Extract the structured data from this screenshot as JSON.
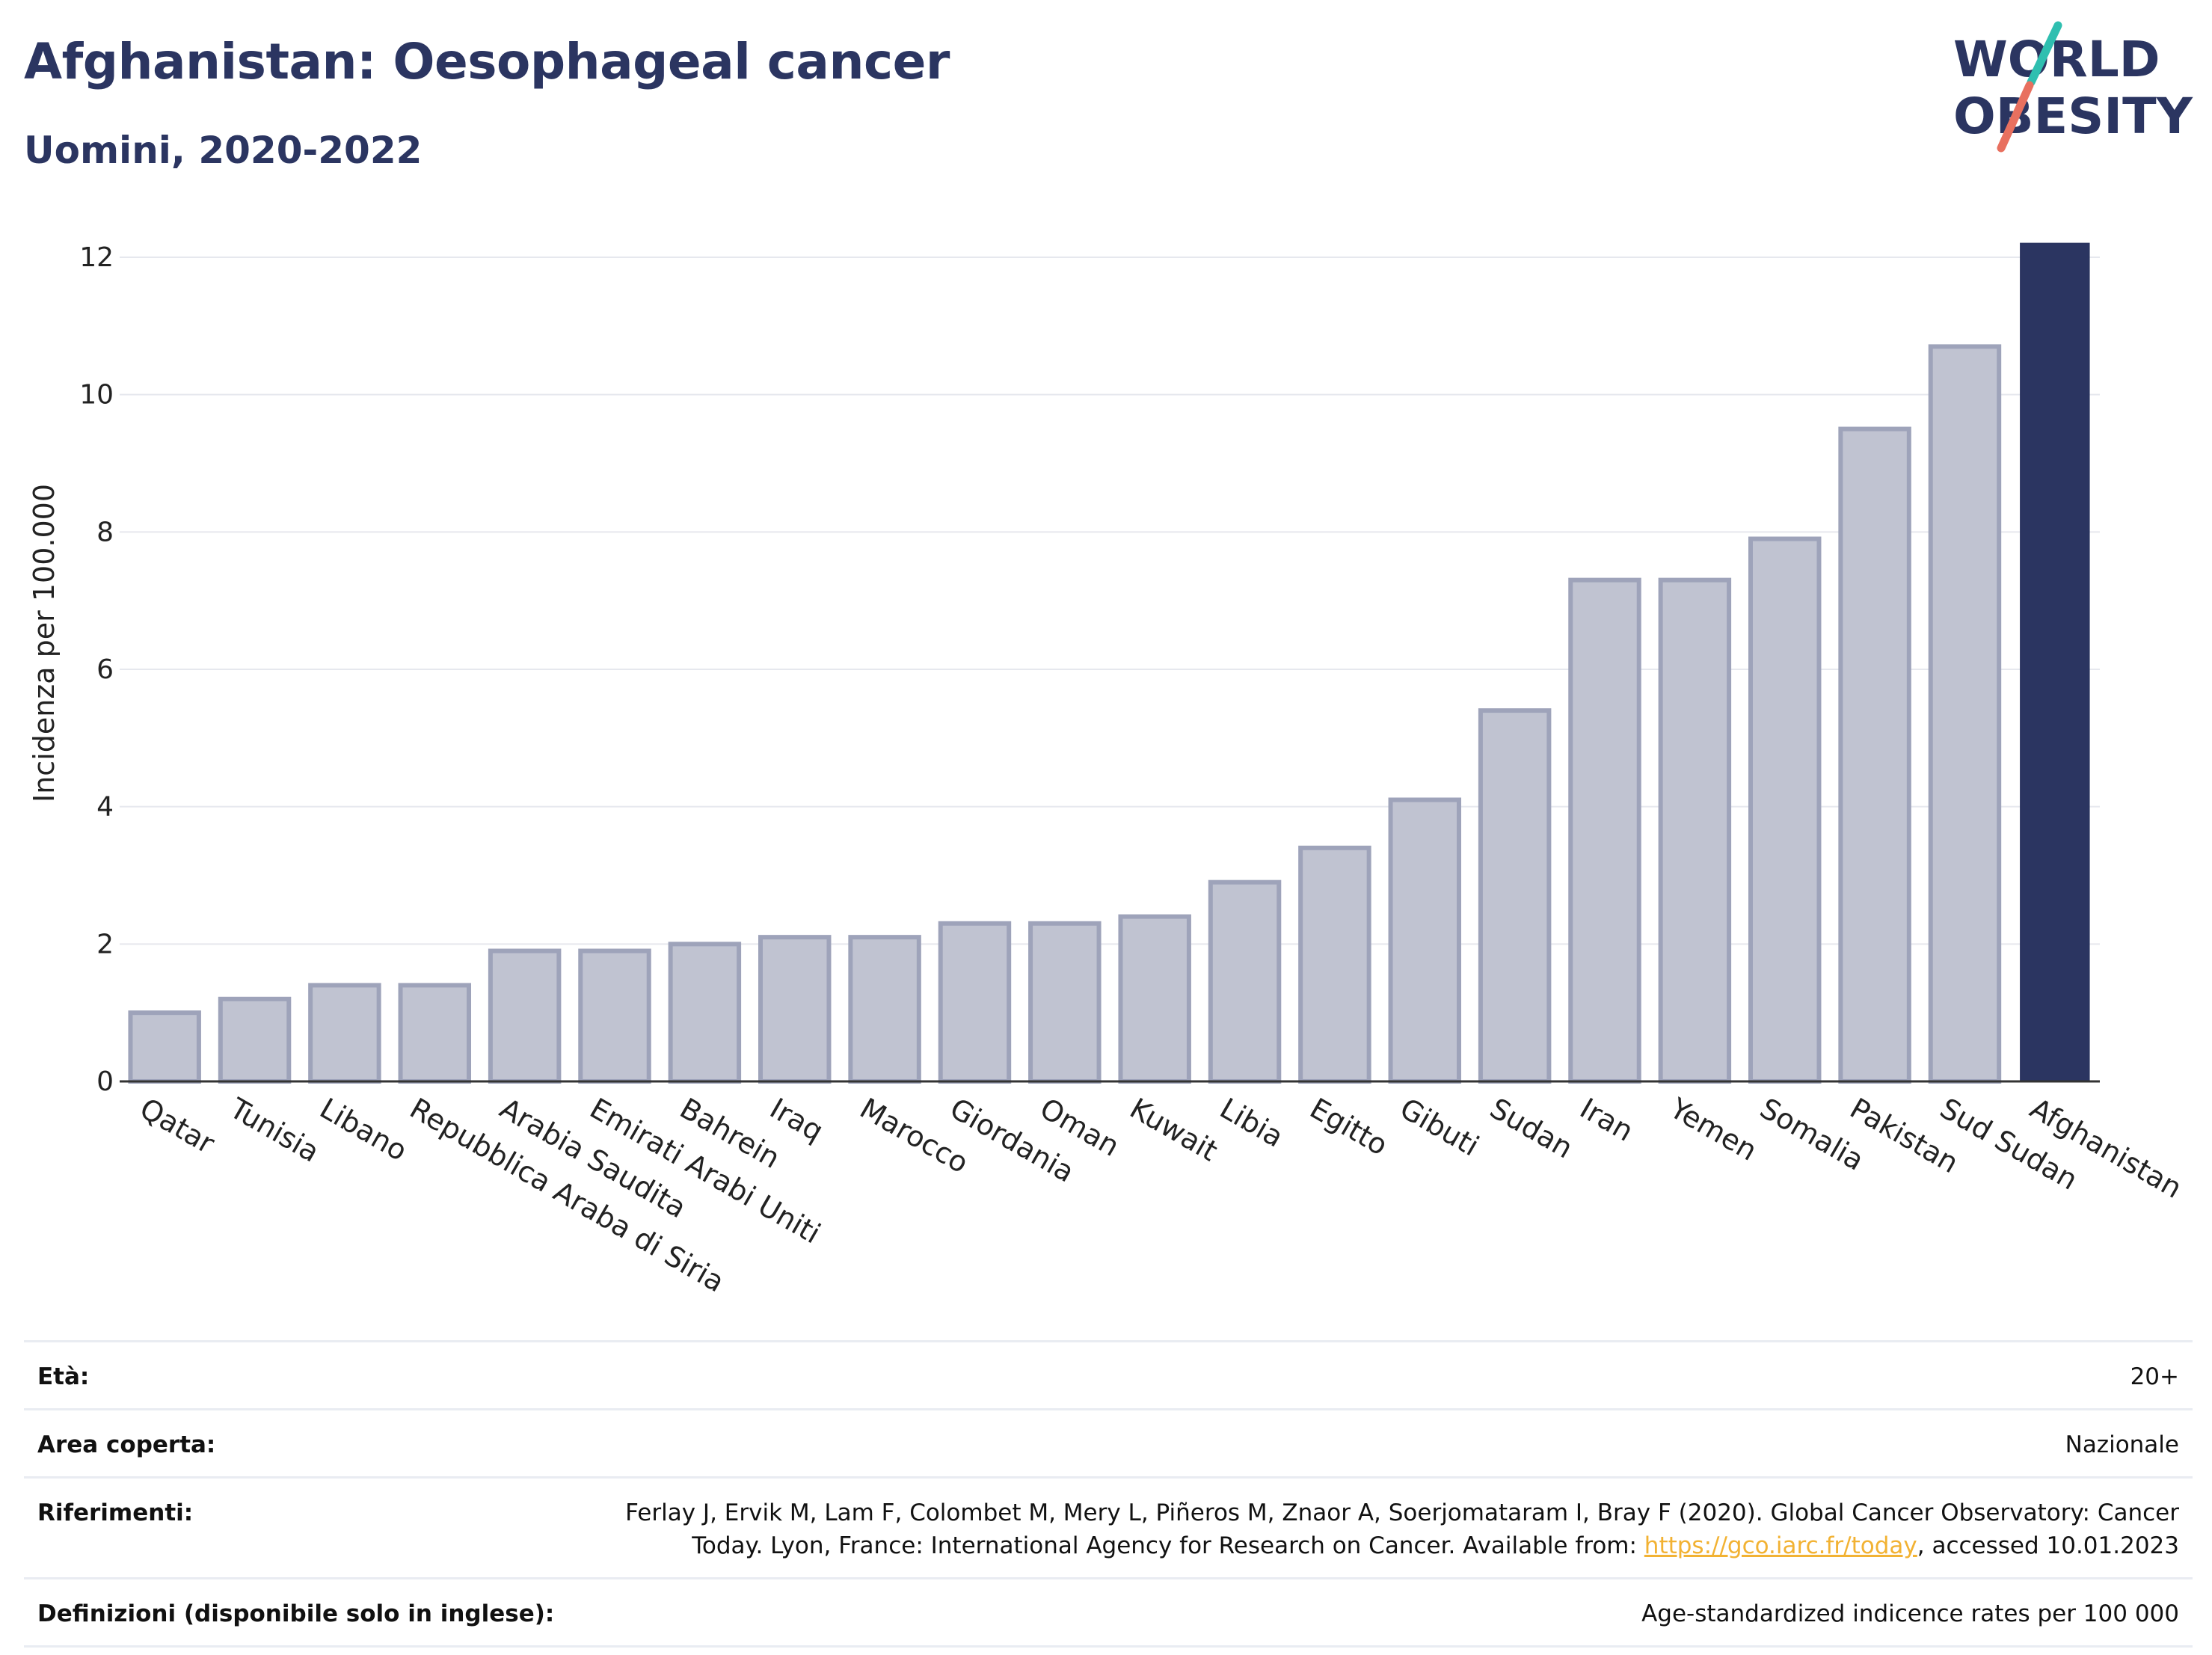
{
  "header": {
    "title": "Afghanistan: Oesophageal cancer",
    "subtitle": "Uomini, 2020-2022"
  },
  "logo": {
    "line1": "WORLD",
    "line2": "OBESITY",
    "slash_colors": [
      "#2fbfb0",
      "#e8705f"
    ],
    "text_color": "#2b3561"
  },
  "chart_data": {
    "type": "bar",
    "ylabel": "Incidenza per 100.000",
    "ylim": [
      0,
      12.3
    ],
    "yticks": [
      0,
      2,
      4,
      6,
      8,
      10,
      12
    ],
    "grid": true,
    "categories": [
      "Qatar",
      "Tunisia",
      "Libano",
      "Repubblica Araba di Siria",
      "Arabia Saudita",
      "Emirati Arabi Uniti",
      "Bahrein",
      "Iraq",
      "Marocco",
      "Giordania",
      "Oman",
      "Kuwait",
      "Libia",
      "Egitto",
      "Gibuti",
      "Sudan",
      "Iran",
      "Yemen",
      "Somalia",
      "Pakistan",
      "Sud Sudan",
      "Afghanistan"
    ],
    "values": [
      1.0,
      1.2,
      1.4,
      1.4,
      1.9,
      1.9,
      2.0,
      2.1,
      2.1,
      2.3,
      2.3,
      2.4,
      2.9,
      3.4,
      4.1,
      5.4,
      7.3,
      7.3,
      7.9,
      9.5,
      10.7,
      12.2
    ],
    "highlight": "Afghanistan",
    "colors": {
      "bar": "#c0c3d1",
      "bar_edge": "#9ea3ba",
      "highlight": "#2b3561",
      "grid": "#e6e8ee",
      "axis": "#333333"
    }
  },
  "info": {
    "age": {
      "label": "Età:",
      "value": "20+"
    },
    "coverage": {
      "label": "Area coperta:",
      "value": "Nazionale"
    },
    "references": {
      "label": "Riferimenti:",
      "line1": "Ferlay J, Ervik M, Lam F, Colombet M, Mery L, Piñeros M, Znaor A, Soerjomataram I, Bray F (2020). Global Cancer Observatory: Cancer",
      "line2_prefix": "Today. Lyon, France: International Agency for Research on Cancer. Available from: ",
      "link": "https://gco.iarc.fr/today",
      "line2_suffix": ", accessed 10.01.2023"
    },
    "definitions": {
      "label": "Definizioni (disponibile solo in inglese):",
      "value": "Age-standardized indicence rates per 100 000"
    }
  }
}
